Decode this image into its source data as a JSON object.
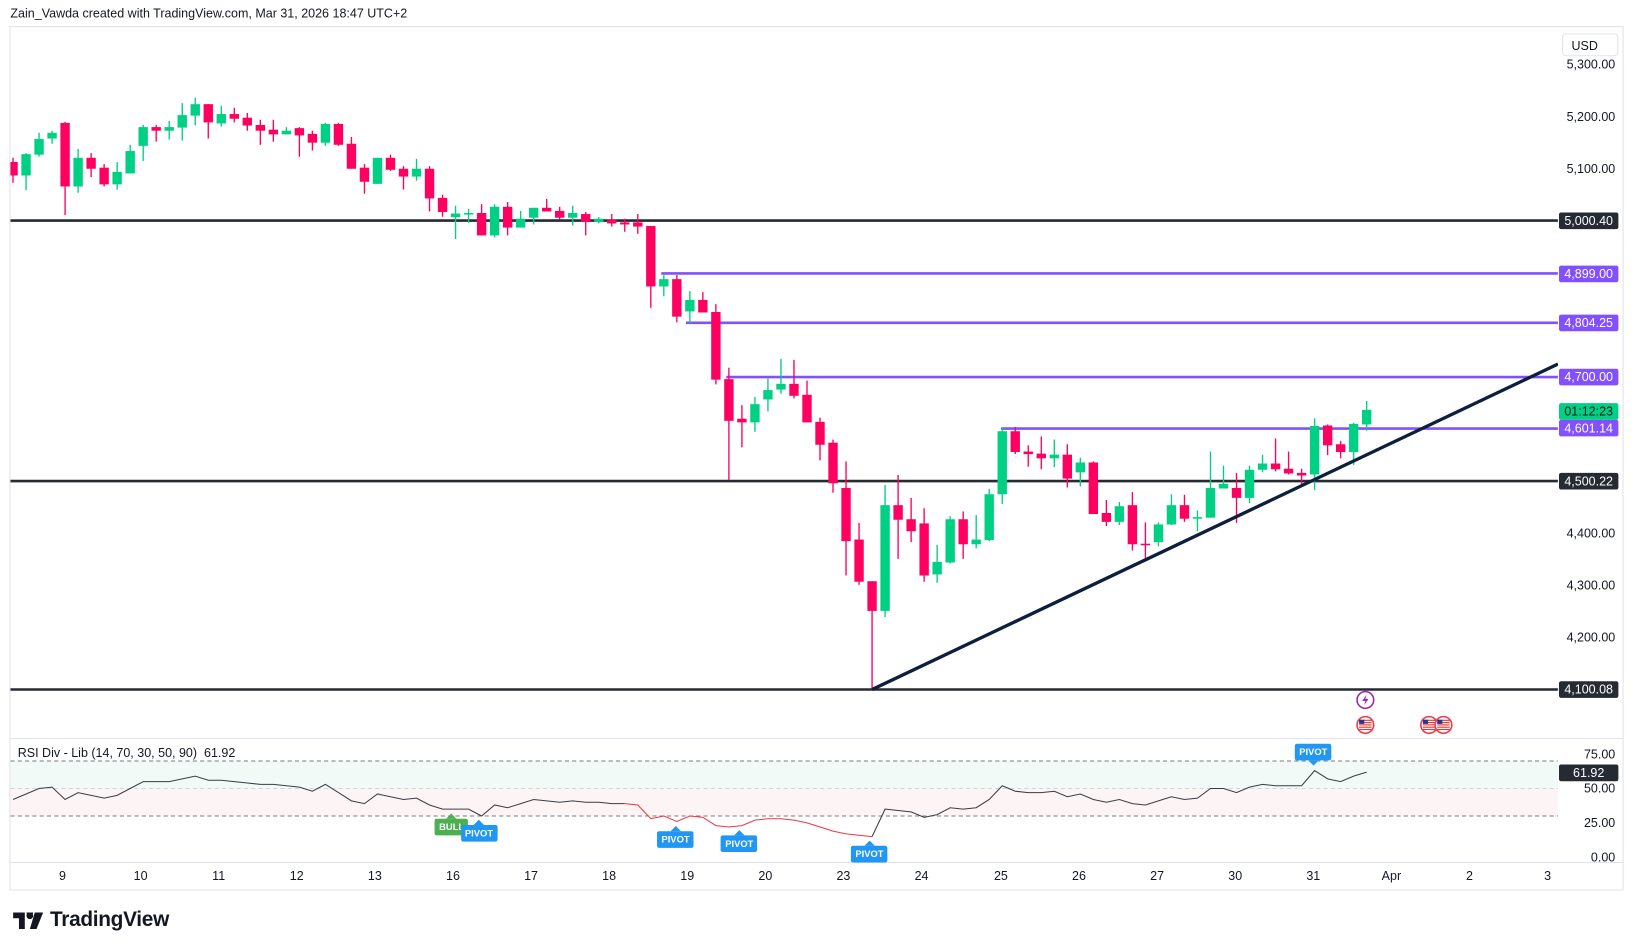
{
  "header": {
    "attribution": "Zain_Vawda created with TradingView.com, Mar 31, 2026 18:47 UTC+2"
  },
  "colors": {
    "up": "#00d084",
    "down": "#ff0060",
    "level_purple": "#8250ff",
    "level_dark": "#262a33",
    "trendline": "#0c1f3d",
    "rsi_line": "#3a3d45",
    "rsi_bear": "#f23645",
    "timer_bg": "#00d084"
  },
  "price_axis": {
    "currency": "USD",
    "ticks": [
      "5,300.00",
      "5,200.00",
      "5,100.00",
      "4,400.00",
      "4,300.00",
      "4,200.00"
    ],
    "tick_values": [
      5300,
      5200,
      5100,
      4400,
      4300,
      4200
    ],
    "countdown": "01:12:23"
  },
  "levels": [
    {
      "price": 5000.4,
      "label": "5,000.40",
      "style": "dark",
      "start_bar": 0
    },
    {
      "price": 4899.0,
      "label": "4,899.00",
      "style": "purple",
      "start_bar": 49.8
    },
    {
      "price": 4804.25,
      "label": "4,804.25",
      "style": "purple",
      "start_bar": 51.7
    },
    {
      "price": 4700.0,
      "label": "4,700.00",
      "style": "purple",
      "start_bar": 54.8
    },
    {
      "price": 4601.14,
      "label": "4,601.14",
      "style": "purple",
      "start_bar": 75.9
    },
    {
      "price": 4500.22,
      "label": "4,500.22",
      "style": "dark",
      "start_bar": 0
    },
    {
      "price": 4100.08,
      "label": "4,100.08",
      "style": "dark",
      "start_bar": 0
    }
  ],
  "trendline": {
    "start": {
      "bar": 66,
      "price": 4100
    },
    "end": {
      "bar": 118.7,
      "price": 4725
    }
  },
  "candles": [
    [
      5113,
      5121,
      5073,
      5087
    ],
    [
      5087,
      5130,
      5059,
      5128
    ],
    [
      5127,
      5169,
      5123,
      5157
    ],
    [
      5158,
      5173,
      5148,
      5169
    ],
    [
      5188,
      5190,
      5011,
      5066
    ],
    [
      5066,
      5138,
      5054,
      5121
    ],
    [
      5121,
      5130,
      5084,
      5100
    ],
    [
      5102,
      5109,
      5066,
      5070
    ],
    [
      5070,
      5113,
      5060,
      5094
    ],
    [
      5091,
      5146,
      5091,
      5134
    ],
    [
      5144,
      5184,
      5115,
      5180
    ],
    [
      5180,
      5184,
      5152,
      5173
    ],
    [
      5173,
      5192,
      5156,
      5180
    ],
    [
      5179,
      5226,
      5154,
      5203
    ],
    [
      5202,
      5236,
      5183,
      5224
    ],
    [
      5224,
      5224,
      5158,
      5189
    ],
    [
      5187,
      5221,
      5181,
      5205
    ],
    [
      5205,
      5217,
      5189,
      5196
    ],
    [
      5198,
      5207,
      5173,
      5183
    ],
    [
      5184,
      5194,
      5146,
      5173
    ],
    [
      5175,
      5194,
      5152,
      5166
    ],
    [
      5166,
      5180,
      5166,
      5173
    ],
    [
      5178,
      5180,
      5123,
      5164
    ],
    [
      5167,
      5173,
      5135,
      5150
    ],
    [
      5150,
      5188,
      5144,
      5186
    ],
    [
      5186,
      5188,
      5144,
      5146
    ],
    [
      5148,
      5161,
      5100,
      5100
    ],
    [
      5102,
      5109,
      5052,
      5075
    ],
    [
      5071,
      5121,
      5071,
      5121
    ],
    [
      5121,
      5127,
      5096,
      5098
    ],
    [
      5100,
      5105,
      5060,
      5085
    ],
    [
      5085,
      5119,
      5077,
      5100
    ],
    [
      5100,
      5105,
      5018,
      5043
    ],
    [
      5044,
      5050,
      5008,
      5017
    ],
    [
      5007,
      5029,
      4965,
      5014
    ],
    [
      5014,
      5023,
      4996,
      5015
    ],
    [
      5015,
      5032,
      4972,
      4972
    ],
    [
      4972,
      5032,
      4968,
      5027
    ],
    [
      5027,
      5036,
      4972,
      4987
    ],
    [
      4987,
      5019,
      4987,
      5004
    ],
    [
      5006,
      5025,
      4993,
      5025
    ],
    [
      5025,
      5042,
      5018,
      5018
    ],
    [
      5019,
      5027,
      5002,
      5006
    ],
    [
      5006,
      5029,
      4991,
      5015
    ],
    [
      5013,
      5017,
      4972,
      4998
    ],
    [
      4998,
      5007,
      4995,
      5004
    ],
    [
      5002,
      5013,
      4989,
      4995
    ],
    [
      4997,
      5004,
      4979,
      4993
    ],
    [
      4997,
      5013,
      4975,
      4989
    ],
    [
      4990,
      4990,
      4833,
      4874
    ],
    [
      4874,
      4896,
      4855,
      4888
    ],
    [
      4888,
      4896,
      4805,
      4816
    ],
    [
      4826,
      4865,
      4803,
      4848
    ],
    [
      4848,
      4863,
      4824,
      4824
    ],
    [
      4825,
      4840,
      4686,
      4695
    ],
    [
      4696,
      4718,
      4502,
      4616
    ],
    [
      4620,
      4646,
      4565,
      4613
    ],
    [
      4613,
      4662,
      4595,
      4648
    ],
    [
      4657,
      4697,
      4634,
      4675
    ],
    [
      4676,
      4735,
      4668,
      4687
    ],
    [
      4687,
      4733,
      4659,
      4664
    ],
    [
      4666,
      4693,
      4613,
      4613
    ],
    [
      4614,
      4622,
      4540,
      4570
    ],
    [
      4574,
      4580,
      4478,
      4496
    ],
    [
      4487,
      4538,
      4319,
      4385
    ],
    [
      4388,
      4420,
      4301,
      4307
    ],
    [
      4308,
      4308,
      4100,
      4251
    ],
    [
      4251,
      4493,
      4239,
      4454
    ],
    [
      4454,
      4512,
      4351,
      4426
    ],
    [
      4427,
      4468,
      4383,
      4404
    ],
    [
      4419,
      4448,
      4307,
      4319
    ],
    [
      4321,
      4378,
      4305,
      4345
    ],
    [
      4344,
      4433,
      4342,
      4427
    ],
    [
      4427,
      4442,
      4351,
      4379
    ],
    [
      4379,
      4435,
      4371,
      4388
    ],
    [
      4387,
      4485,
      4385,
      4475
    ],
    [
      4475,
      4602,
      4456,
      4596
    ],
    [
      4596,
      4604,
      4552,
      4556
    ],
    [
      4557,
      4569,
      4528,
      4552
    ],
    [
      4553,
      4586,
      4523,
      4544
    ],
    [
      4544,
      4580,
      4527,
      4551
    ],
    [
      4551,
      4571,
      4488,
      4505
    ],
    [
      4517,
      4545,
      4490,
      4536
    ],
    [
      4536,
      4538,
      4437,
      4437
    ],
    [
      4439,
      4464,
      4414,
      4422
    ],
    [
      4422,
      4460,
      4416,
      4452
    ],
    [
      4454,
      4479,
      4367,
      4379
    ],
    [
      4380,
      4421,
      4352,
      4377
    ],
    [
      4383,
      4421,
      4375,
      4417
    ],
    [
      4417,
      4475,
      4416,
      4454
    ],
    [
      4454,
      4474,
      4422,
      4428
    ],
    [
      4428,
      4444,
      4404,
      4431
    ],
    [
      4430,
      4557,
      4430,
      4487
    ],
    [
      4486,
      4530,
      4486,
      4495
    ],
    [
      4487,
      4516,
      4420,
      4468
    ],
    [
      4468,
      4530,
      4458,
      4522
    ],
    [
      4522,
      4551,
      4517,
      4534
    ],
    [
      4534,
      4582,
      4519,
      4523
    ],
    [
      4524,
      4557,
      4513,
      4515
    ],
    [
      4516,
      4524,
      4494,
      4511
    ],
    [
      4513,
      4621,
      4483,
      4606
    ],
    [
      4607,
      4609,
      4550,
      4569
    ],
    [
      4571,
      4577,
      4544,
      4556
    ],
    [
      4556,
      4612,
      4531,
      4610
    ],
    [
      4609,
      4654,
      4597,
      4637
    ]
  ],
  "time_axis": [
    {
      "label": "9",
      "bar": 3.8
    },
    {
      "label": "10",
      "bar": 9.8
    },
    {
      "label": "11",
      "bar": 15.8
    },
    {
      "label": "12",
      "bar": 21.8
    },
    {
      "label": "13",
      "bar": 27.8
    },
    {
      "label": "16",
      "bar": 33.8
    },
    {
      "label": "17",
      "bar": 39.8
    },
    {
      "label": "18",
      "bar": 45.8
    },
    {
      "label": "19",
      "bar": 51.8
    },
    {
      "label": "20",
      "bar": 57.8
    },
    {
      "label": "23",
      "bar": 63.8
    },
    {
      "label": "24",
      "bar": 69.8
    },
    {
      "label": "25",
      "bar": 75.9
    },
    {
      "label": "26",
      "bar": 81.9
    },
    {
      "label": "27",
      "bar": 87.9
    },
    {
      "label": "30",
      "bar": 93.9
    },
    {
      "label": "31",
      "bar": 99.9
    },
    {
      "label": "Apr",
      "bar": 105.9
    },
    {
      "label": "2",
      "bar": 111.9
    },
    {
      "label": "3",
      "bar": 117.9
    }
  ],
  "rsi": {
    "title": "RSI Div - Lib (14, 70, 30, 50, 90)",
    "value": "61.92",
    "axis_ticks": [
      "75.00",
      "50.00",
      "25.00",
      "0.00"
    ],
    "axis_values": [
      75,
      50,
      25,
      0
    ],
    "overbought": 70,
    "midline": 50,
    "oversold": 30,
    "bear_segment": [
      47,
      66
    ],
    "values": [
      42,
      46,
      50,
      51,
      42,
      47,
      45,
      43,
      45,
      50,
      55,
      55,
      55,
      57,
      59,
      56,
      56,
      55,
      54,
      53,
      53,
      52,
      51,
      48,
      53,
      47,
      41,
      39,
      46,
      44,
      42,
      43,
      38,
      35,
      35,
      35,
      30,
      38,
      36,
      39,
      42,
      41,
      40,
      41,
      40,
      40,
      39,
      39,
      38,
      28,
      30,
      26,
      30,
      29,
      23,
      22,
      23,
      27,
      28,
      28,
      27,
      25,
      22,
      19,
      17,
      16,
      15,
      35,
      34,
      33,
      29,
      31,
      36,
      35,
      36,
      42,
      52,
      48,
      47,
      47,
      48,
      44,
      46,
      42,
      40,
      42,
      39,
      38,
      41,
      44,
      42,
      43,
      50,
      50,
      47,
      51,
      53,
      52,
      52,
      52,
      63,
      57,
      55,
      59,
      61.92
    ],
    "markers": [
      {
        "text": "BULL",
        "bar": 33.7,
        "color": "green",
        "dir": "up"
      },
      {
        "text": "PIVOT",
        "bar": 35.8,
        "color": "blue",
        "dir": "up"
      },
      {
        "text": "PIVOT",
        "bar": 50.9,
        "color": "blue",
        "dir": "up"
      },
      {
        "text": "PIVOT",
        "bar": 55.8,
        "color": "blue",
        "dir": "up"
      },
      {
        "text": "PIVOT",
        "bar": 65.8,
        "color": "blue",
        "dir": "up"
      },
      {
        "text": "PIVOT",
        "bar": 99.9,
        "color": "blue",
        "dir": "down"
      }
    ]
  },
  "events": [
    {
      "type": "lightning-icon",
      "bar": 103.9,
      "row": 0
    },
    {
      "type": "us-flag-icon",
      "bar": 103.9,
      "row": 1
    },
    {
      "type": "us-flag-icon",
      "bar": 108.8,
      "row": 1
    },
    {
      "type": "us-flag-icon",
      "bar": 109.9,
      "row": 1
    }
  ],
  "brand": {
    "name": "TradingView"
  }
}
